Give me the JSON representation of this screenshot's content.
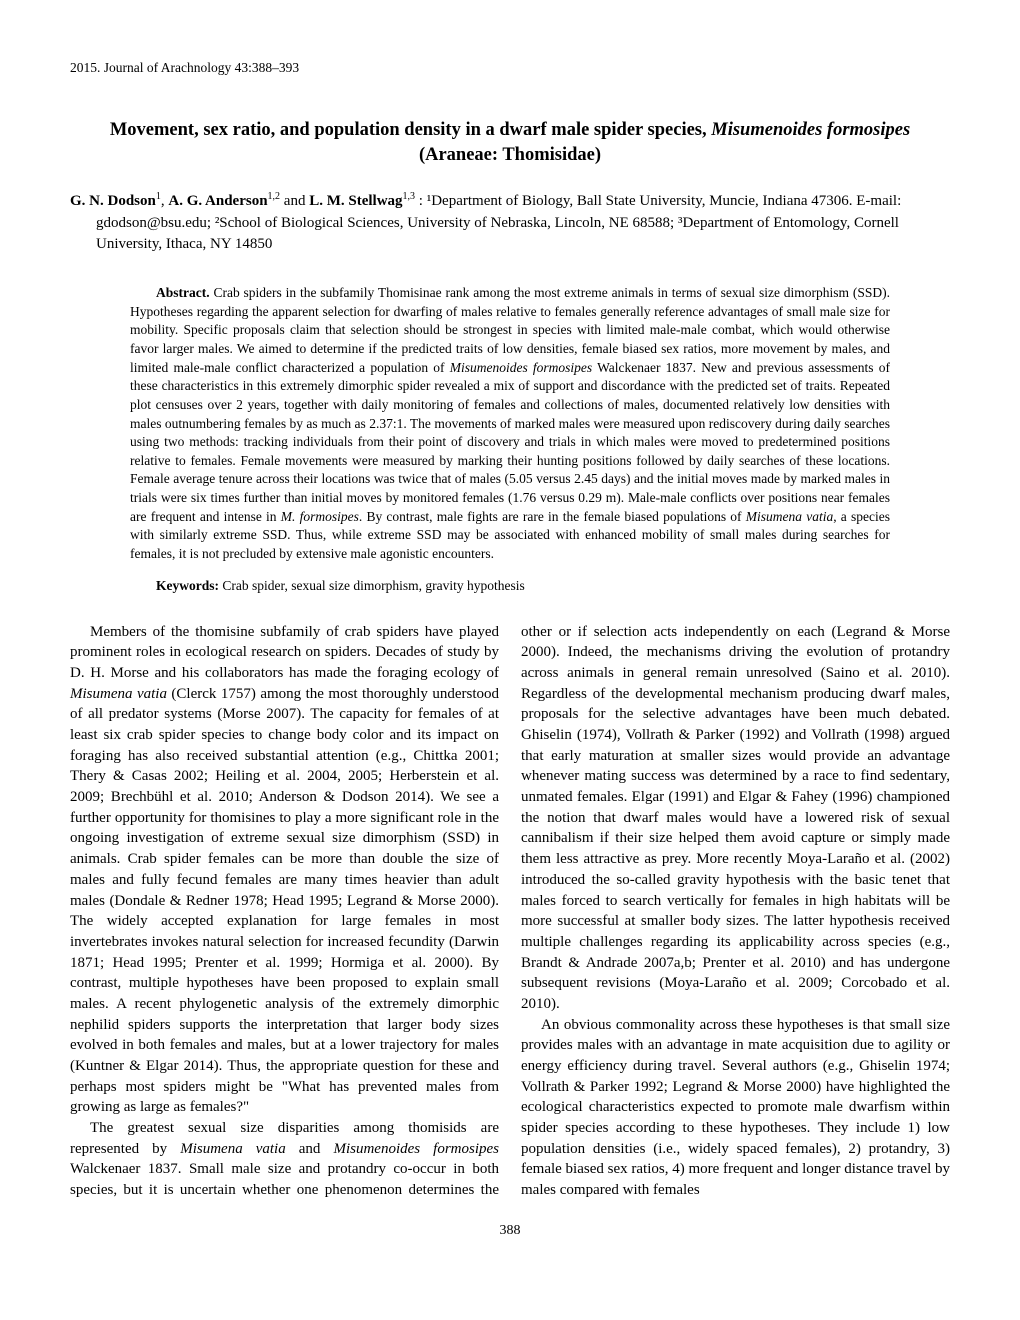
{
  "journal": "2015. Journal of Arachnology 43:388–393",
  "title_pre": "Movement, sex ratio, and population density in a dwarf male spider species, ",
  "title_species": "Misumenoides formosipes",
  "title_sub": "(Araneae: Thomisidae)",
  "authors": {
    "a1": "G. N. Dodson",
    "s1": "1",
    "a2": "A. G. Anderson",
    "s2": "1,2",
    "a3": "L. M. Stellwag",
    "s3": "1,3",
    "aff": " :   ¹Department of Biology, Ball State University, Muncie, Indiana 47306. E-mail: gdodson@bsu.edu; ²School of Biological Sciences, University of Nebraska, Lincoln, NE 68588; ³Department of Entomology, Cornell University, Ithaca, NY 14850"
  },
  "abstract_label": "Abstract.",
  "abstract_text_1": "Crab spiders in the subfamily Thomisinae rank among the most extreme animals in terms of sexual size dimorphism (SSD). Hypotheses regarding the apparent selection for dwarfing of males relative to females generally reference advantages of small male size for mobility. Specific proposals claim that selection should be strongest in species with limited male-male combat, which would otherwise favor larger males. We aimed to determine if the predicted traits of low densities, female biased sex ratios, more movement by males, and limited male-male conflict characterized a population of ",
  "abstract_sp1": "Misumenoides formosipes",
  "abstract_text_2": " Walckenaer 1837. New and previous assessments of these characteristics in this extremely dimorphic spider revealed a mix of support and discordance with the predicted set of traits. Repeated plot censuses over 2 years, together with daily monitoring of females and collections of males, documented relatively low densities with males outnumbering females by as much as 2.37:1. The movements of marked males were measured upon rediscovery during daily searches using two methods: tracking individuals from their point of discovery and trials in which males were moved to predetermined positions relative to females. Female movements were measured by marking their hunting positions followed by daily searches of these locations. Female average tenure across their locations was twice that of males (5.05 versus 2.45 days) and the initial moves made by marked males in trials were six times further than initial moves by monitored females (1.76 versus 0.29 m). Male-male conflicts over positions near females are frequent and intense in ",
  "abstract_sp2": "M. formosipes",
  "abstract_text_3": ". By contrast, male fights are rare in the female biased populations of ",
  "abstract_sp3": "Misumena vatia",
  "abstract_text_4": ", a species with similarly extreme SSD. Thus, while extreme SSD may be associated with enhanced mobility of small males during searches for females, it is not precluded by extensive male agonistic encounters.",
  "keywords_label": "Keywords:",
  "keywords_text": "Crab spider, sexual size dimorphism, gravity hypothesis",
  "body": {
    "p1a": "Members of the thomisine subfamily of crab spiders have played prominent roles in ecological research on spiders. Decades of study by D. H. Morse and his collaborators has made the foraging ecology of ",
    "p1s1": "Misumena vatia",
    "p1b": " (Clerck 1757) among the most thoroughly understood of all predator systems (Morse 2007). The capacity for females of at least six crab spider species to change body color and its impact on foraging has also received substantial attention (e.g., Chittka 2001; Thery & Casas 2002; Heiling et al. 2004, 2005; Herberstein et al. 2009; Brechbühl et al. 2010; Anderson & Dodson 2014). We see a further opportunity for thomisines to play a more significant role in the ongoing investigation of extreme sexual size dimorphism (SSD) in animals. Crab spider females can be more than double the size of males and fully fecund females are many times heavier than adult males (Dondale & Redner 1978; Head 1995; Legrand & Morse 2000). The widely accepted explanation for large females in most invertebrates invokes natural selection for increased fecundity (Darwin 1871; Head 1995; Prenter et al. 1999; Hormiga et al. 2000). By contrast, multiple hypotheses have been proposed to explain small males. A recent phylogenetic analysis of the extremely dimorphic nephilid spiders supports the interpretation that larger body sizes evolved in both females and males, but at a lower trajectory for males (Kuntner & Elgar 2014). Thus, the appropriate question for these and perhaps most spiders might be \"What has prevented males from growing as large as females?\"",
    "p2a": "The greatest sexual size disparities among thomisids are represented by ",
    "p2s1": "Misumena vatia",
    "p2b": " and ",
    "p2s2": "Misumenoides formosipes",
    "p2c": " Walckenaer 1837. Small male size and protandry co-occur in both species, but it is uncertain whether one phenomenon determines the other or if selection acts independently on each (Legrand & Morse 2000). Indeed, the mechanisms driving the evolution of protandry across animals in general remain unresolved (Saino et al. 2010). Regardless of the developmental mechanism producing dwarf males, proposals for the selective advantages have been much debated. Ghiselin (1974), Vollrath & Parker (1992) and Vollrath (1998) argued that early maturation at smaller sizes would provide an advantage whenever mating success was determined by a race to find sedentary, unmated females. Elgar (1991) and Elgar & Fahey (1996) championed the notion that dwarf males would have a lowered risk of sexual cannibalism if their size helped them avoid capture or simply made them less attractive as prey. More recently Moya-Laraño et al. (2002) introduced the so-called gravity hypothesis with the basic tenet that males forced to search vertically for females in high habitats will be more successful at smaller body sizes. The latter hypothesis received multiple challenges regarding its applicability across species (e.g., Brandt & Andrade 2007a,b; Prenter et al. 2010) and has undergone subsequent revisions (Moya-Laraño et al. 2009; Corcobado et al. 2010).",
    "p3": "An obvious commonality across these hypotheses is that small size provides males with an advantage in mate acquisition due to agility or energy efficiency during travel. Several authors (e.g., Ghiselin 1974; Vollrath & Parker 1992; Legrand & Morse 2000) have highlighted the ecological characteristics expected to promote male dwarfism within spider species according to these hypotheses. They include 1) low population densities (i.e., widely spaced females), 2) protandry, 3) female biased sex ratios, 4) more frequent and longer distance travel by males compared with females"
  },
  "page_number": "388"
}
